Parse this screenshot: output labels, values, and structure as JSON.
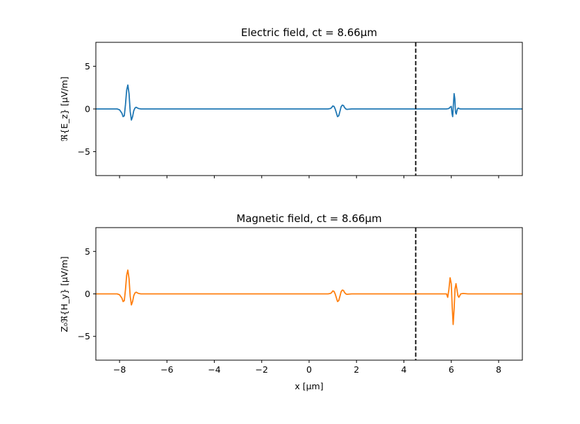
{
  "figure": {
    "background": "#ffffff"
  },
  "chart_data": [
    {
      "type": "line",
      "title": "Electric field, ct = 8.66μm",
      "xlabel": "",
      "ylabel": "ℜ{E_z} [μV/m]",
      "xlim": [
        -9,
        9
      ],
      "ylim": [
        -7.8,
        7.8
      ],
      "xticks": [
        -8,
        -6,
        -4,
        -2,
        0,
        2,
        4,
        6,
        8
      ],
      "xtick_labels_visible": false,
      "yticks": [
        -5,
        0,
        5
      ],
      "ytick_labels": [
        "−5",
        "0",
        "5"
      ],
      "grid": false,
      "vline": {
        "x": 4.5,
        "style": "dashed",
        "color": "#000000"
      },
      "series": [
        {
          "color": "#1f77b4",
          "x": [
            -9,
            -8.3,
            -8.1,
            -8.0,
            -7.9,
            -7.85,
            -7.8,
            -7.75,
            -7.7,
            -7.65,
            -7.6,
            -7.55,
            -7.5,
            -7.45,
            -7.4,
            -7.35,
            -7.3,
            -7.2,
            -7.1,
            -7.0,
            0.6,
            0.8,
            0.9,
            0.95,
            1.0,
            1.05,
            1.1,
            1.15,
            1.2,
            1.25,
            1.3,
            1.35,
            1.4,
            1.45,
            1.5,
            1.55,
            1.6,
            1.7,
            1.8,
            1.9,
            5.5,
            5.8,
            5.9,
            5.95,
            6.0,
            6.03,
            6.06,
            6.09,
            6.12,
            6.15,
            6.18,
            6.21,
            6.24,
            6.27,
            6.3,
            6.35,
            6.4,
            6.5,
            6.7,
            9
          ],
          "y": [
            0,
            0,
            0,
            -0.1,
            -0.5,
            -0.9,
            -0.8,
            0.5,
            2.2,
            2.8,
            1.8,
            -0.3,
            -1.3,
            -0.9,
            -0.2,
            0.1,
            0.2,
            0.05,
            0,
            0,
            0,
            0,
            0.05,
            0.15,
            0.35,
            0.3,
            0,
            -0.45,
            -0.9,
            -0.8,
            -0.3,
            0.25,
            0.45,
            0.4,
            0.15,
            0,
            -0.05,
            -0.02,
            0,
            0,
            0,
            0,
            0.05,
            0.2,
            0.3,
            -0.5,
            -0.9,
            0.5,
            1.8,
            1.2,
            -0.4,
            -0.6,
            -0.2,
            0.05,
            0.1,
            0.02,
            0,
            0,
            0,
            0
          ]
        }
      ]
    },
    {
      "type": "line",
      "title": "Magnetic field, ct = 8.66μm",
      "xlabel": "x [μm]",
      "ylabel": "Z₀ℜ{H_y} [μV/m]",
      "xlim": [
        -9,
        9
      ],
      "ylim": [
        -7.8,
        7.8
      ],
      "xticks": [
        -8,
        -6,
        -4,
        -2,
        0,
        2,
        4,
        6,
        8
      ],
      "xtick_labels": [
        "−8",
        "−6",
        "−4",
        "−2",
        "0",
        "2",
        "4",
        "6",
        "8"
      ],
      "xtick_labels_visible": true,
      "yticks": [
        -5,
        0,
        5
      ],
      "ytick_labels": [
        "−5",
        "0",
        "5"
      ],
      "grid": false,
      "vline": {
        "x": 4.5,
        "style": "dashed",
        "color": "#000000"
      },
      "series": [
        {
          "color": "#ff7f0e",
          "x": [
            -9,
            -8.3,
            -8.1,
            -8.0,
            -7.9,
            -7.85,
            -7.8,
            -7.75,
            -7.7,
            -7.65,
            -7.6,
            -7.55,
            -7.5,
            -7.45,
            -7.4,
            -7.35,
            -7.3,
            -7.2,
            -7.1,
            -7.0,
            0.6,
            0.8,
            0.9,
            0.95,
            1.0,
            1.05,
            1.1,
            1.15,
            1.2,
            1.25,
            1.3,
            1.35,
            1.4,
            1.45,
            1.5,
            1.55,
            1.6,
            1.7,
            1.8,
            1.9,
            5.5,
            5.8,
            5.85,
            5.9,
            5.95,
            6.0,
            6.04,
            6.08,
            6.12,
            6.16,
            6.2,
            6.24,
            6.28,
            6.32,
            6.36,
            6.4,
            6.5,
            6.7,
            9
          ],
          "y": [
            0,
            0,
            0,
            -0.1,
            -0.5,
            -0.9,
            -0.8,
            0.5,
            2.2,
            2.8,
            1.8,
            -0.3,
            -1.3,
            -0.9,
            -0.2,
            0.1,
            0.2,
            0.05,
            0,
            0,
            0,
            0,
            0.05,
            0.15,
            0.35,
            0.3,
            0,
            -0.45,
            -0.9,
            -0.8,
            -0.3,
            0.25,
            0.45,
            0.4,
            0.15,
            0,
            -0.05,
            -0.02,
            0,
            0,
            0,
            0,
            -0.4,
            0.5,
            1.9,
            1.2,
            -1.5,
            -3.6,
            -1.8,
            0.6,
            1.2,
            0.5,
            -0.2,
            -0.4,
            -0.2,
            0,
            0.05,
            0,
            0
          ]
        }
      ]
    }
  ]
}
